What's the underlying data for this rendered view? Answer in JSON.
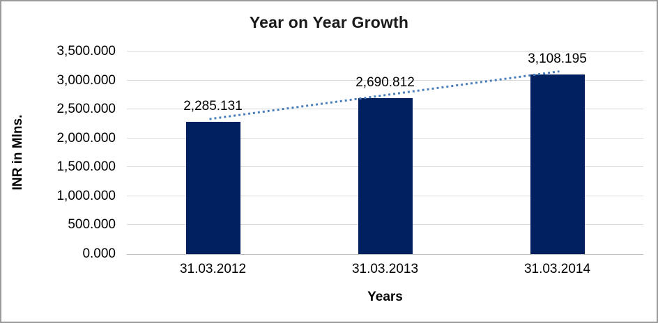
{
  "chart_data": {
    "type": "bar",
    "title": "Year on Year Growth",
    "xlabel": "Years",
    "ylabel": "INR in Mlns.",
    "categories": [
      "31.03.2012",
      "31.03.2013",
      "31.03.2014"
    ],
    "values": [
      2285.131,
      2690.812,
      3108.195
    ],
    "data_labels": [
      "2,285.131",
      "2,690.812",
      "3,108.195"
    ],
    "y_ticks": {
      "values": [
        0,
        500,
        1000,
        1500,
        2000,
        2500,
        3000,
        3500
      ],
      "labels": [
        "0.000",
        "500.000",
        "1,000.000",
        "1,500.000",
        "2,000.000",
        "2,500.000",
        "3,000.000",
        "3,500.000"
      ]
    },
    "ylim": [
      0,
      3500
    ],
    "grid": true,
    "legend": "none",
    "trendline": {
      "type": "linear",
      "style": "dotted"
    },
    "colors": {
      "bar": "#002060",
      "trendline": "#4a7ebb",
      "gridline": "#d9d9d9",
      "axis_line": "#bfbfbf",
      "text": "#000000",
      "frame_border": "#9b9b9b",
      "background": "#ffffff"
    }
  }
}
